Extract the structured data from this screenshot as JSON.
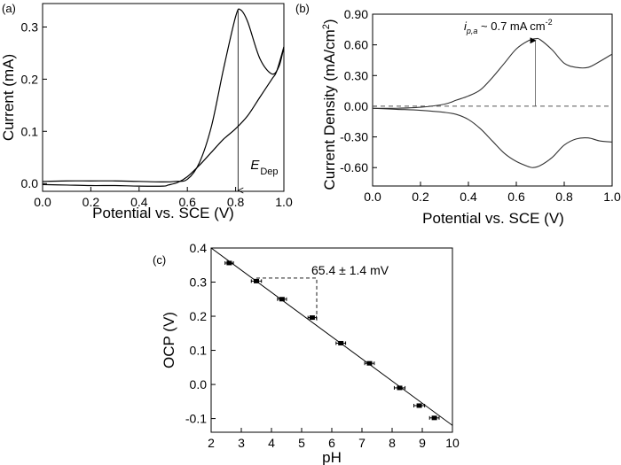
{
  "chart_data": [
    {
      "panel": "(a)",
      "type": "line",
      "xlabel": "Potential vs. SCE (V)",
      "ylabel": "Current (mA)",
      "xlim": [
        0.0,
        1.0
      ],
      "ylim": [
        -0.015,
        0.345
      ],
      "xticks": [
        "0.0",
        "0.2",
        "0.4",
        "0.6",
        "0.8",
        "1.0"
      ],
      "yticks": [
        "0.0",
        "0.1",
        "0.2",
        "0.3"
      ],
      "yticks_values": [
        0.0,
        0.1,
        0.2,
        0.3
      ],
      "series": [
        {
          "x": [
            0.0,
            0.1,
            0.2,
            0.3,
            0.4,
            0.5,
            0.55,
            0.6,
            0.65,
            0.7,
            0.75,
            0.8,
            0.82,
            0.85,
            0.9,
            0.95,
            0.98,
            1.0
          ],
          "y": [
            0.004,
            0.005,
            0.005,
            0.005,
            0.004,
            0.003,
            0.004,
            0.008,
            0.04,
            0.11,
            0.22,
            0.32,
            0.333,
            0.31,
            0.24,
            0.21,
            0.225,
            0.262
          ]
        },
        {
          "x": [
            1.0,
            0.97,
            0.95,
            0.9,
            0.85,
            0.8,
            0.75,
            0.7,
            0.65,
            0.6,
            0.56,
            0.52,
            0.5,
            0.4,
            0.3,
            0.2,
            0.1,
            0.0
          ],
          "y": [
            0.262,
            0.215,
            0.2,
            0.165,
            0.13,
            0.105,
            0.085,
            0.06,
            0.035,
            0.013,
            0.002,
            -0.003,
            -0.005,
            -0.005,
            -0.004,
            -0.004,
            -0.003,
            -0.002
          ]
        }
      ],
      "annotation": {
        "text_main": "E",
        "text_sub": "Dep",
        "x": 0.81,
        "y_from": 0.333,
        "y_to": -0.015
      }
    },
    {
      "panel": "(b)",
      "type": "line",
      "xlabel": "Potential vs. SCE (V)",
      "ylabel": "Current Density (mA/cm²)",
      "xlim": [
        0.0,
        1.0
      ],
      "ylim": [
        -0.78,
        0.9
      ],
      "xticks": [
        "0.0",
        "0.2",
        "0.4",
        "0.6",
        "0.8",
        "1.0"
      ],
      "yticks": [
        "-0.60",
        "-0.30",
        "0.00",
        "0.30",
        "0.60",
        "0.90"
      ],
      "yticks_values": [
        -0.6,
        -0.3,
        0.0,
        0.3,
        0.6,
        0.9
      ],
      "series": [
        {
          "x": [
            0.0,
            0.1,
            0.2,
            0.3,
            0.35,
            0.4,
            0.45,
            0.5,
            0.55,
            0.6,
            0.65,
            0.68,
            0.7,
            0.75,
            0.8,
            0.85,
            0.9,
            0.95,
            1.0
          ],
          "y": [
            -0.02,
            -0.02,
            -0.01,
            0.02,
            0.06,
            0.1,
            0.16,
            0.28,
            0.42,
            0.56,
            0.64,
            0.66,
            0.65,
            0.55,
            0.42,
            0.38,
            0.38,
            0.44,
            0.51
          ]
        },
        {
          "x": [
            1.0,
            0.95,
            0.9,
            0.85,
            0.8,
            0.75,
            0.7,
            0.67,
            0.65,
            0.6,
            0.55,
            0.5,
            0.45,
            0.4,
            0.35,
            0.3,
            0.2,
            0.1,
            0.0
          ],
          "y": [
            -0.35,
            -0.34,
            -0.31,
            -0.32,
            -0.38,
            -0.5,
            -0.58,
            -0.6,
            -0.59,
            -0.54,
            -0.46,
            -0.34,
            -0.22,
            -0.13,
            -0.08,
            -0.06,
            -0.04,
            -0.03,
            -0.02
          ]
        }
      ],
      "baseline_dashed": 0.0,
      "annotation": {
        "text": "i_p,a ~ 0.7 mA cm⁻²",
        "x": 0.68,
        "y_from": 0.0,
        "y_to": 0.66
      }
    },
    {
      "panel": "(c)",
      "type": "scatter",
      "xlabel": "pH",
      "ylabel": "OCP (V)",
      "xlim": [
        2,
        10
      ],
      "ylim": [
        -0.14,
        0.4
      ],
      "xticks": [
        "2",
        "3",
        "4",
        "5",
        "6",
        "7",
        "8",
        "9",
        "10"
      ],
      "xticks_values": [
        2,
        3,
        4,
        5,
        6,
        7,
        8,
        9,
        10
      ],
      "yticks": [
        "-0.1",
        "0.0",
        "0.1",
        "0.2",
        "0.3",
        "0.4"
      ],
      "yticks_values": [
        -0.1,
        0.0,
        0.1,
        0.2,
        0.3,
        0.4
      ],
      "points": [
        {
          "x": 2.6,
          "y": 0.356,
          "xerr": 0.05
        },
        {
          "x": 3.5,
          "y": 0.303,
          "xerr": 0.08
        },
        {
          "x": 4.35,
          "y": 0.25,
          "xerr": 0.06
        },
        {
          "x": 5.35,
          "y": 0.196,
          "xerr": 0.05
        },
        {
          "x": 6.3,
          "y": 0.121,
          "xerr": 0.07
        },
        {
          "x": 7.25,
          "y": 0.062,
          "xerr": 0.07
        },
        {
          "x": 8.25,
          "y": -0.01,
          "xerr": 0.09
        },
        {
          "x": 8.9,
          "y": -0.062,
          "xerr": 0.09
        },
        {
          "x": 9.4,
          "y": -0.098,
          "xerr": 0.07
        }
      ],
      "fit_line": {
        "x": [
          2.0,
          10.0
        ],
        "y": [
          0.4,
          -0.12
        ]
      },
      "slope_annotation": "65.4 ± 1.4 mV",
      "slope_triangle": {
        "x1": 3.5,
        "y1": 0.312,
        "x2": 5.5,
        "y2": 0.186
      }
    }
  ],
  "panel_labels": [
    "(a)",
    "(b)",
    "(c)"
  ]
}
